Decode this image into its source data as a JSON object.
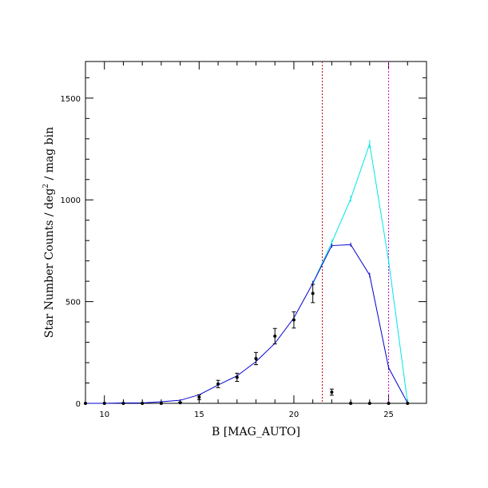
{
  "chart_data": {
    "type": "line",
    "title": "",
    "xlabel": "B [MAG_AUTO]",
    "ylabel_main": "Star Number Counts / deg",
    "ylabel_sup": "2",
    "ylabel_tail": " / mag bin",
    "xlim": [
      9,
      27
    ],
    "ylim": [
      0,
      1680
    ],
    "x_ticks": [
      10,
      15,
      20,
      25
    ],
    "y_ticks": [
      0,
      500,
      1000,
      1500
    ],
    "x_minor_step": 1,
    "y_minor_step": 100,
    "grid": false,
    "vlines": [
      {
        "x": 21.5,
        "color": "#cc0000"
      },
      {
        "x": 25,
        "color": "#cc00cc"
      }
    ],
    "series": [
      {
        "color": "#00e5e5",
        "style": "line",
        "points": [
          {
            "x": 21,
            "y": 590
          },
          {
            "x": 22,
            "y": 790
          },
          {
            "x": 23,
            "y": 1005
          },
          {
            "x": 24,
            "y": 1275
          },
          {
            "x": 25,
            "y": 700
          },
          {
            "x": 26,
            "y": 5
          }
        ],
        "errors": [
          15,
          15,
          15,
          20,
          15,
          0
        ]
      },
      {
        "color": "#0000cc",
        "style": "line",
        "points": [
          {
            "x": 9,
            "y": 0
          },
          {
            "x": 10,
            "y": 0
          },
          {
            "x": 11,
            "y": 2
          },
          {
            "x": 12,
            "y": 2
          },
          {
            "x": 13,
            "y": 8
          },
          {
            "x": 14,
            "y": 15
          },
          {
            "x": 15,
            "y": 42
          },
          {
            "x": 16,
            "y": 90
          },
          {
            "x": 17,
            "y": 135
          },
          {
            "x": 18,
            "y": 205
          },
          {
            "x": 19,
            "y": 295
          },
          {
            "x": 20,
            "y": 420
          },
          {
            "x": 21,
            "y": 590
          },
          {
            "x": 22,
            "y": 775
          },
          {
            "x": 23,
            "y": 780
          },
          {
            "x": 24,
            "y": 630
          },
          {
            "x": 25,
            "y": 175
          },
          {
            "x": 26,
            "y": 2
          }
        ],
        "errors": [
          0,
          0,
          0,
          0,
          0,
          0,
          0,
          0,
          0,
          0,
          0,
          0,
          10,
          10,
          10,
          12,
          8,
          0
        ]
      },
      {
        "color": "#000000",
        "style": "points",
        "points": [
          {
            "x": 9,
            "y": 0
          },
          {
            "x": 10,
            "y": 0
          },
          {
            "x": 11,
            "y": 0
          },
          {
            "x": 12,
            "y": 0
          },
          {
            "x": 13,
            "y": 0
          },
          {
            "x": 14,
            "y": 3
          },
          {
            "x": 15,
            "y": 30
          },
          {
            "x": 16,
            "y": 95
          },
          {
            "x": 17,
            "y": 128
          },
          {
            "x": 18,
            "y": 220
          },
          {
            "x": 19,
            "y": 330
          },
          {
            "x": 20,
            "y": 410
          },
          {
            "x": 21,
            "y": 540
          },
          {
            "x": 22,
            "y": 55
          },
          {
            "x": 23,
            "y": 0
          },
          {
            "x": 24,
            "y": 0
          },
          {
            "x": 25,
            "y": 0
          },
          {
            "x": 26,
            "y": 0
          }
        ],
        "errors": [
          0,
          0,
          0,
          0,
          0,
          3,
          12,
          18,
          20,
          30,
          38,
          40,
          45,
          15,
          0,
          0,
          0,
          0
        ]
      }
    ]
  }
}
